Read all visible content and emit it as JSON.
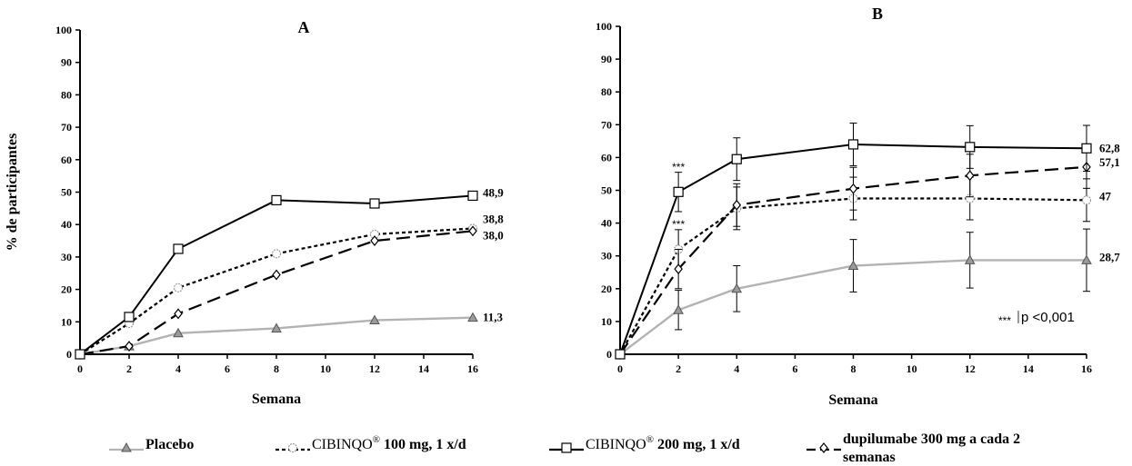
{
  "chart_data": [
    {
      "type": "line",
      "title": "A",
      "xlabel": "Semana",
      "ylabel": "% de participantes",
      "x": [
        0,
        2,
        4,
        8,
        12,
        16
      ],
      "xticks": [
        0,
        2,
        4,
        6,
        8,
        10,
        12,
        14,
        16
      ],
      "yticks": [
        0,
        10,
        20,
        30,
        40,
        50,
        60,
        70,
        80,
        90,
        100
      ],
      "xlim": [
        0,
        16
      ],
      "ylim": [
        0,
        100
      ],
      "series": [
        {
          "key": "placebo",
          "values": [
            0,
            2.5,
            6.5,
            8,
            10.5,
            11.3
          ],
          "end_label": "11,3"
        },
        {
          "key": "cib100",
          "values": [
            0,
            9.5,
            20.5,
            31,
            37,
            38.8
          ],
          "end_label": "38,8"
        },
        {
          "key": "cib200",
          "values": [
            0,
            11.5,
            32.5,
            47.5,
            46.5,
            48.9
          ],
          "end_label": "48,9"
        },
        {
          "key": "dupi",
          "values": [
            0,
            2.5,
            12.5,
            24.5,
            35,
            38
          ],
          "end_label": "38,0"
        }
      ]
    },
    {
      "type": "line",
      "title": "B",
      "xlabel": "Semana",
      "ylabel": "",
      "x": [
        0,
        2,
        4,
        8,
        12,
        16
      ],
      "xticks": [
        0,
        2,
        4,
        6,
        8,
        10,
        12,
        14,
        16
      ],
      "yticks": [
        0,
        10,
        20,
        30,
        40,
        50,
        60,
        70,
        80,
        90,
        100
      ],
      "xlim": [
        0,
        16
      ],
      "ylim": [
        0,
        100
      ],
      "series": [
        {
          "key": "placebo",
          "values": [
            0,
            13.5,
            20,
            27,
            28.7,
            28.7
          ],
          "err": [
            0,
            6,
            7,
            8,
            8.5,
            9.5
          ],
          "end_label": "28,7"
        },
        {
          "key": "cib100",
          "values": [
            0,
            32,
            44.5,
            47.5,
            47.5,
            47
          ],
          "err": [
            0,
            6,
            6.5,
            6.5,
            6.5,
            6.5
          ],
          "end_label": "47"
        },
        {
          "key": "cib200",
          "values": [
            0,
            49.5,
            59.5,
            64,
            63.2,
            62.8
          ],
          "err": [
            0,
            6,
            6.5,
            6.5,
            6.5,
            7
          ],
          "end_label": "62,8"
        },
        {
          "key": "dupi",
          "values": [
            0,
            26,
            45.5,
            50.5,
            54.5,
            57.1
          ],
          "err": [
            0,
            6,
            6.5,
            6.5,
            6.5,
            6.5
          ],
          "end_label": "57,1"
        }
      ],
      "significance_markers": [
        {
          "x": 2,
          "y": 56,
          "text": "***"
        },
        {
          "x": 2,
          "y": 38.5,
          "text": "***"
        }
      ],
      "significance_note": {
        "symbol": "***",
        "text": "p <0,001"
      }
    }
  ],
  "legend": [
    {
      "key": "placebo",
      "label": "Placebo",
      "label_after": "",
      "bold": true,
      "color": "#b3b3b3",
      "dash": "",
      "marker": "triangle"
    },
    {
      "key": "cib100",
      "label": "CIBINQO",
      "label_after": " 100 mg, 1 x/d",
      "bold": false,
      "color": "#000000",
      "dash": "4 3",
      "marker": "circle"
    },
    {
      "key": "cib200",
      "label": "CIBINQO",
      "label_after": " 200 mg, 1 x/d",
      "bold": false,
      "color": "#000000",
      "dash": "",
      "marker": "square"
    },
    {
      "key": "dupi",
      "label": "dupilumabe 300 mg a cada 2 semanas",
      "label_after": "",
      "bold": true,
      "color": "#000000",
      "dash": "15 7",
      "marker": "diamond"
    }
  ],
  "legend_sup": "®"
}
